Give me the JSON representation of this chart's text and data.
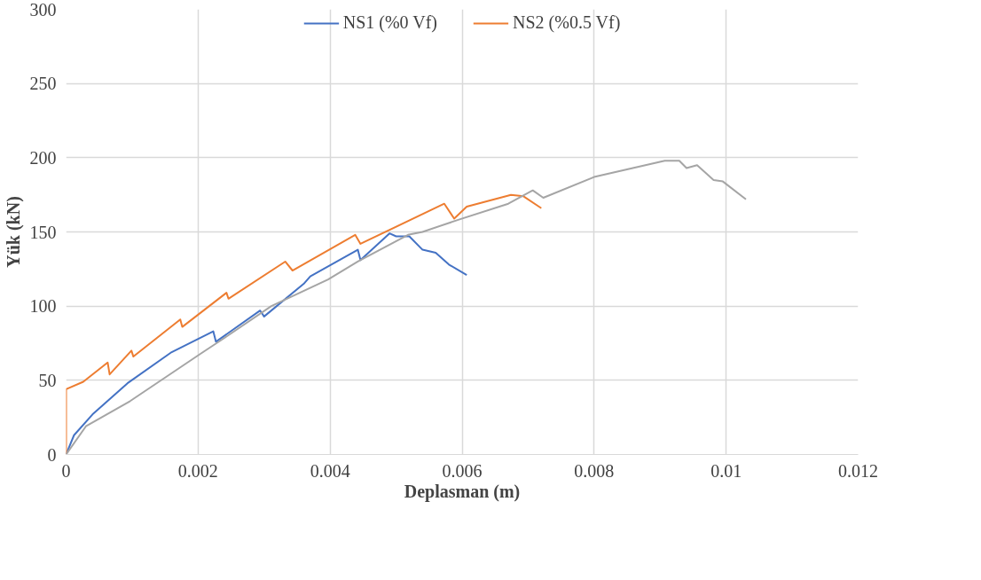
{
  "chart_data": {
    "type": "line",
    "xlabel": "Deplasman (m)",
    "ylabel": "Yük (kN)",
    "xlim": [
      0,
      0.012
    ],
    "ylim": [
      0,
      300
    ],
    "xticks": [
      {
        "value": 0,
        "label": "0"
      },
      {
        "value": 0.002,
        "label": "0.002"
      },
      {
        "value": 0.004,
        "label": "0.004"
      },
      {
        "value": 0.006,
        "label": "0.006"
      },
      {
        "value": 0.008,
        "label": "0.008"
      },
      {
        "value": 0.01,
        "label": "0.01"
      },
      {
        "value": 0.012,
        "label": "0.012"
      }
    ],
    "yticks": [
      0,
      50,
      100,
      150,
      200,
      250,
      300
    ],
    "grid": true,
    "legend": "top",
    "marker": "none",
    "line_style": "solid",
    "series": [
      {
        "name": "NS1 (%0 Vf)",
        "color": "#4472c4",
        "x": [
          0,
          0.00012,
          0.0004,
          0.00093,
          0.0016,
          0.00223,
          0.00227,
          0.00294,
          0.003,
          0.0036,
          0.0037,
          0.00442,
          0.00446,
          0.0049,
          0.005,
          0.0052,
          0.0054,
          0.0056,
          0.0058,
          0.00607
        ],
        "values": [
          0,
          13,
          27,
          48,
          69,
          83,
          76,
          97,
          93,
          115,
          120,
          138,
          131,
          149,
          147,
          147,
          138,
          136,
          128,
          121
        ]
      },
      {
        "name": "NS2 (%0.5 Vf)",
        "color": "#ed7d31",
        "x": [
          0,
          0,
          0.00026,
          0.00063,
          0.00066,
          0.00099,
          0.00102,
          0.00173,
          0.00176,
          0.00243,
          0.00246,
          0.00332,
          0.00343,
          0.00438,
          0.00446,
          0.00573,
          0.00588,
          0.00607,
          0.00674,
          0.00693,
          0.0072
        ],
        "values": [
          0,
          44,
          49,
          62,
          54,
          70,
          66,
          91,
          86,
          109,
          105,
          130,
          124,
          148,
          142,
          169,
          159,
          167,
          175,
          174,
          166
        ]
      },
      {
        "color": "#a5a5a5",
        "x": [
          0,
          0.0003,
          0.00097,
          0.00204,
          0.00238,
          0.00311,
          0.00397,
          0.00442,
          0.00518,
          0.0054,
          0.00593,
          0.0067,
          0.00707,
          0.00723,
          0.008,
          0.00907,
          0.00929,
          0.0094,
          0.00956,
          0.00981,
          0.00995,
          0.0103
        ],
        "values": [
          0,
          19,
          36,
          68,
          78,
          100,
          118,
          130,
          148,
          150,
          158,
          169,
          178,
          173,
          187,
          198,
          198,
          193,
          195,
          185,
          184,
          172
        ]
      }
    ]
  }
}
